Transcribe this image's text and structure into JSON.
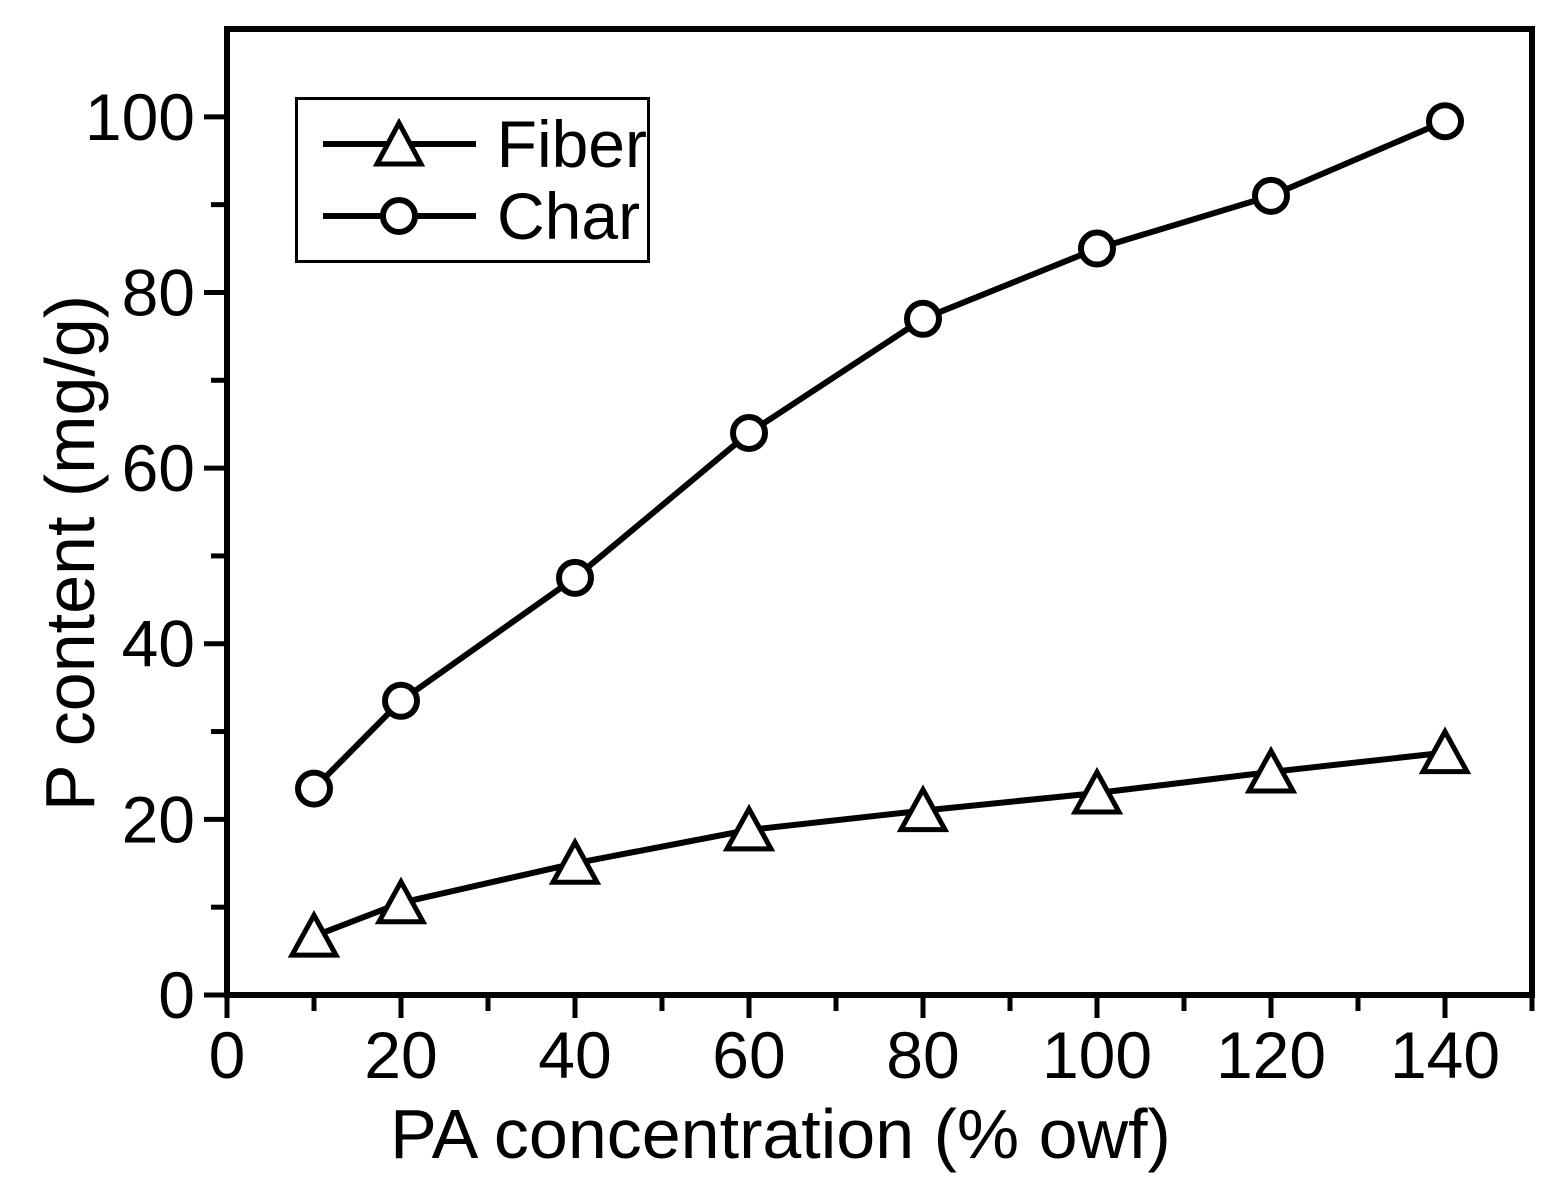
{
  "figure": {
    "background": "#ffffff",
    "ink": "#000000"
  },
  "chart_data": {
    "type": "line",
    "title": "",
    "xlabel": "PA concentration (% owf)",
    "ylabel": "P content (mg/g)",
    "x": [
      10,
      20,
      40,
      60,
      80,
      100,
      120,
      140
    ],
    "series": [
      {
        "name": "Fiber",
        "marker": "triangle",
        "color": "#000000",
        "values": [
          6.7,
          10.5,
          15.0,
          18.8,
          21.0,
          23.0,
          25.4,
          27.6
        ]
      },
      {
        "name": "Char",
        "marker": "circle",
        "color": "#000000",
        "values": [
          23.5,
          33.5,
          47.5,
          64.0,
          77.0,
          85.0,
          91.0,
          99.5
        ]
      }
    ],
    "xlim": [
      0,
      150
    ],
    "ylim": [
      0,
      110
    ],
    "x_major_ticks": [
      0,
      20,
      40,
      60,
      80,
      100,
      120,
      140
    ],
    "x_minor_ticks": [
      10,
      30,
      50,
      70,
      90,
      110,
      130,
      150
    ],
    "y_major_ticks": [
      0,
      20,
      40,
      60,
      80,
      100
    ],
    "y_minor_ticks": [
      10,
      30,
      50,
      70,
      90
    ],
    "grid": false,
    "legend_position": "upper-left",
    "line_color": "#000000",
    "marker_fill": "#ffffff"
  }
}
